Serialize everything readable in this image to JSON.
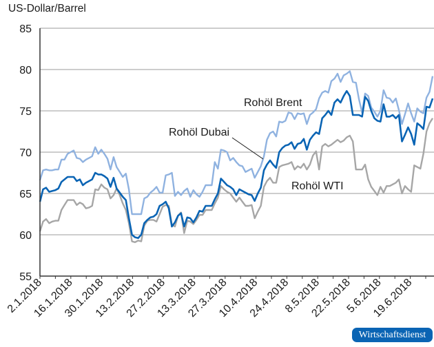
{
  "chart_data": {
    "type": "line",
    "title": "",
    "ylabel": "US-Dollar/Barrel",
    "xlabel": "",
    "ylim": [
      55,
      85
    ],
    "yticks": [
      55,
      60,
      65,
      70,
      75,
      80,
      85
    ],
    "grid": "horizontal",
    "x_tick_labels": [
      "2.1.2018",
      "16.1.2018",
      "30.1.2018",
      "13.2.2018",
      "27.2.2018",
      "13.3.2018",
      "27.3.2018",
      "10.4.2018",
      "24.4.2018",
      "8.5.2018",
      "22.5.2018",
      "5.6.2018",
      "19.6.2018"
    ],
    "legend_position": "inline labels",
    "annotations": [
      {
        "text": "Rohöl Brent",
        "series": "Rohöl Brent"
      },
      {
        "text": "Rohöl Dubai",
        "series": "Rohöl Dubai",
        "leader_line": true
      },
      {
        "text": "Rohöl WTI",
        "series": "Rohöl WTI"
      }
    ],
    "x_index_note": "values are approximate daily closes read from plot, x = index position across 2.1.2018–29.6.2018",
    "series": [
      {
        "name": "Rohöl Brent",
        "color": "#8fb2e0",
        "values": [
          66.6,
          67.8,
          67.9,
          67.8,
          67.8,
          67.9,
          67.9,
          69.1,
          69.1,
          69.8,
          70.0,
          70.2,
          69.3,
          69.2,
          68.8,
          69.1,
          69.3,
          69.5,
          70.6,
          69.8,
          70.3,
          69.8,
          69.2,
          67.9,
          69.4,
          68.2,
          67.6,
          67.0,
          67.4,
          65.5,
          62.5,
          62.5,
          62.5,
          62.5,
          64.4,
          64.6,
          65.1,
          65.4,
          65.8,
          65.1,
          65.1,
          67.2,
          67.3,
          67.5,
          64.7,
          65.2,
          64.8,
          65.3,
          65.6,
          64.6,
          65.4,
          64.9,
          64.6,
          65.2,
          66.0,
          66.0,
          66.0,
          68.8,
          68.0,
          70.3,
          70.2,
          70.0,
          69.0,
          69.3,
          68.8,
          68.4,
          68.3,
          67.6,
          67.8,
          68.0,
          66.9,
          67.6,
          68.3,
          69.5,
          71.5,
          72.3,
          72.5,
          71.9,
          73.7,
          73.6,
          73.8,
          74.8,
          74.7,
          74.0,
          74.7,
          74.6,
          74.7,
          73.4,
          74.5,
          74.8,
          75.2,
          76.5,
          77.2,
          77.4,
          77.2,
          78.6,
          78.9,
          79.5,
          78.5,
          79.3,
          79.5,
          79.8,
          78.5,
          78.4,
          76.4,
          74.8,
          77.1,
          76.8,
          75.4,
          74.9,
          74.3,
          75.0,
          77.5,
          76.6,
          76.5,
          76.0,
          76.5,
          75.1,
          73.4,
          74.6,
          75.9,
          74.7,
          73.7,
          75.3,
          74.9,
          74.7,
          76.6,
          77.3,
          79.2
        ]
      },
      {
        "name": "Rohöl Dubai",
        "color": "#0a64b4",
        "values": [
          64.0,
          65.5,
          65.7,
          65.2,
          65.3,
          65.4,
          65.6,
          66.4,
          66.7,
          67.0,
          67.0,
          67.0,
          66.5,
          66.7,
          66.0,
          66.3,
          66.5,
          66.7,
          67.5,
          67.3,
          67.3,
          67.1,
          66.8,
          65.8,
          66.9,
          65.6,
          65.1,
          64.6,
          64.2,
          62.0,
          60.0,
          59.7,
          59.6,
          60.0,
          61.4,
          61.8,
          62.1,
          62.2,
          62.5,
          63.5,
          63.7,
          64.0,
          63.2,
          61.0,
          61.5,
          62.3,
          62.6,
          61.0,
          62.1,
          62.0,
          61.5,
          62.1,
          62.9,
          62.8,
          63.5,
          63.5,
          63.5,
          64.3,
          65.0,
          66.8,
          66.4,
          66.0,
          65.8,
          65.5,
          64.8,
          65.5,
          65.3,
          65.1,
          64.9,
          64.8,
          64.1,
          65.0,
          65.7,
          67.8,
          68.5,
          69.0,
          68.5,
          68.1,
          70.0,
          70.5,
          70.8,
          70.9,
          71.2,
          70.4,
          71.0,
          71.1,
          71.6,
          70.3,
          71.5,
          72.0,
          72.4,
          72.2,
          74.1,
          74.5,
          75.0,
          74.5,
          76.0,
          76.4,
          76.0,
          76.8,
          77.4,
          76.8,
          74.5,
          74.5,
          74.5,
          74.3,
          76.7,
          76.2,
          75.0,
          74.1,
          73.8,
          73.7,
          75.8,
          74.3,
          74.3,
          74.5,
          74.1,
          74.5,
          71.3,
          72.1,
          73.0,
          72.2,
          70.9,
          73.5,
          73.2,
          72.8,
          75.5,
          75.4,
          76.5
        ]
      },
      {
        "name": "Rohöl WTI",
        "color": "#a6a6a6",
        "values": [
          60.4,
          61.6,
          61.9,
          61.4,
          61.6,
          61.7,
          61.7,
          63.0,
          63.6,
          64.2,
          64.2,
          64.2,
          63.6,
          63.9,
          63.7,
          63.2,
          63.3,
          63.5,
          65.5,
          65.4,
          66.1,
          65.7,
          65.5,
          64.4,
          64.8,
          65.6,
          64.8,
          63.8,
          63.0,
          61.4,
          59.2,
          59.1,
          59.3,
          59.2,
          61.1,
          61.7,
          61.8,
          61.8,
          61.6,
          62.5,
          63.4,
          63.6,
          63.5,
          61.2,
          61.0,
          62.3,
          62.7,
          60.2,
          61.7,
          61.6,
          61.3,
          61.8,
          62.4,
          62.4,
          63.0,
          63.0,
          63.0,
          63.8,
          64.5,
          65.9,
          65.5,
          65.2,
          65.0,
          64.5,
          64.0,
          64.5,
          64.0,
          63.5,
          63.5,
          63.6,
          62.0,
          62.8,
          63.5,
          65.8,
          66.5,
          66.9,
          66.3,
          66.3,
          68.2,
          68.4,
          68.5,
          68.6,
          68.8,
          67.9,
          68.3,
          68.1,
          68.6,
          67.9,
          68.5,
          69.6,
          70.1,
          67.9,
          70.7,
          71.0,
          70.7,
          70.9,
          71.2,
          71.5,
          71.2,
          71.4,
          71.8,
          72.0,
          71.3,
          67.9,
          67.9,
          67.9,
          68.5,
          66.7,
          65.8,
          65.3,
          64.8,
          65.8,
          65.1,
          65.9,
          65.9,
          66.1,
          66.3,
          66.7,
          65.0,
          65.9,
          65.5,
          65.2,
          68.4,
          68.2,
          68.0,
          69.8,
          72.5,
          73.5,
          74.1
        ]
      }
    ]
  },
  "header": {
    "y_axis_title": "US-Dollar/Barrel"
  },
  "footer": {
    "publisher_badge": "Wirtschaftsdienst"
  }
}
